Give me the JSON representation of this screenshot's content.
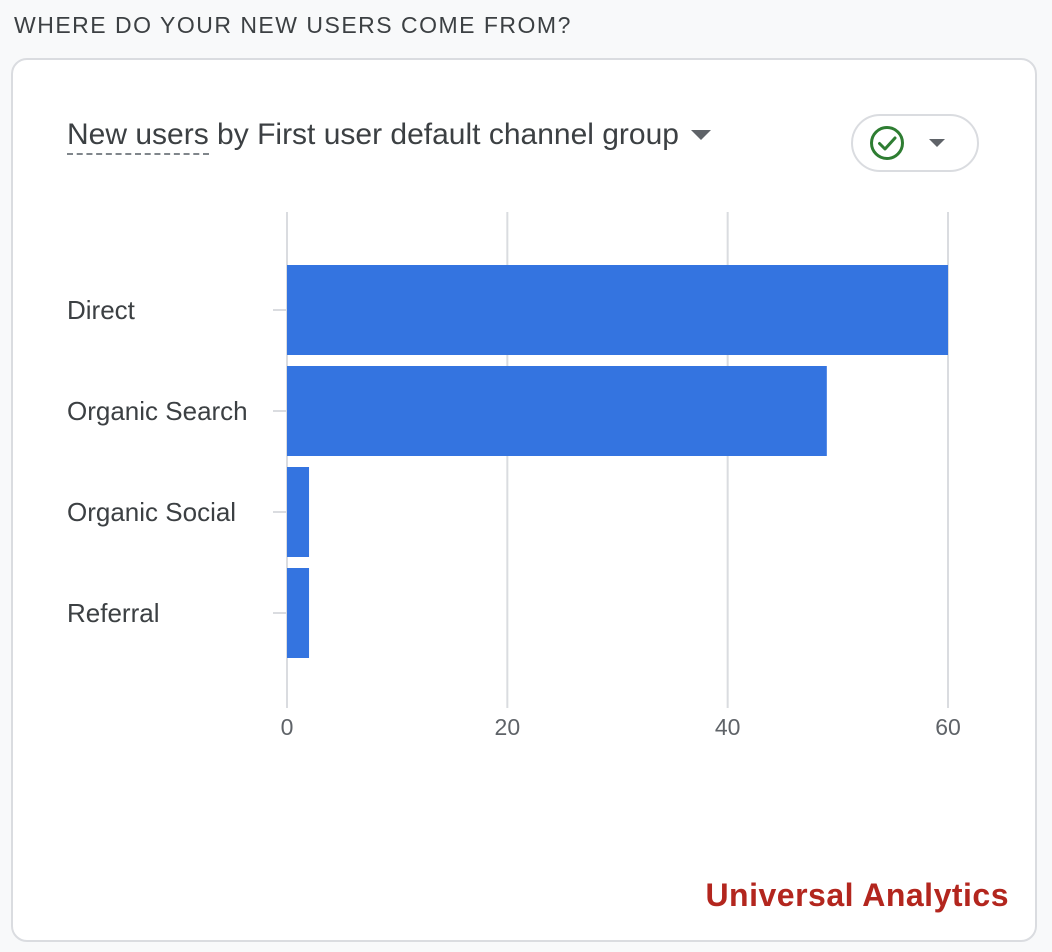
{
  "section": {
    "title": "WHERE DO YOUR NEW USERS COME FROM?"
  },
  "card": {
    "title_metric": "New users",
    "title_rest": " by First user default channel group",
    "compare_icon": "check-circle-icon",
    "brand": "Universal Analytics"
  },
  "colors": {
    "bar": "#3474e0",
    "grid": "#dadce0",
    "check": "#2e7d32",
    "brand": "#b3261e"
  },
  "chart_data": {
    "type": "bar",
    "orientation": "horizontal",
    "categories": [
      "Direct",
      "Organic Search",
      "Organic Social",
      "Referral"
    ],
    "values": [
      60,
      49,
      2,
      2
    ],
    "xlim": [
      0,
      60
    ],
    "xticks": [
      0,
      20,
      40,
      60
    ],
    "grid": true
  }
}
